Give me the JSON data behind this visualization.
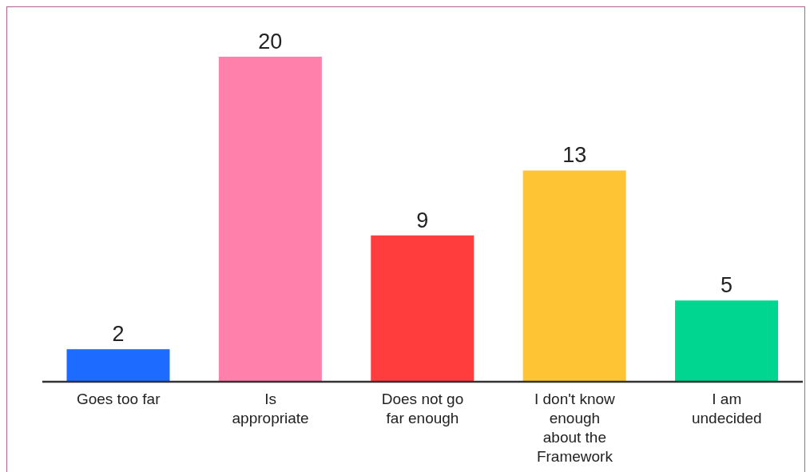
{
  "chart_data": {
    "type": "bar",
    "categories": [
      "Goes too far",
      "Is appropriate",
      "Does not go far enough",
      "I don't know enough about the Framework",
      "I am undecided"
    ],
    "values": [
      2,
      20,
      9,
      13,
      5
    ],
    "colors": [
      "#1e6bff",
      "#ff80ab",
      "#ff3d3d",
      "#ffc433",
      "#00d68f"
    ],
    "data_labels": true,
    "grid": false,
    "legend": false,
    "tick_labels": "x"
  }
}
